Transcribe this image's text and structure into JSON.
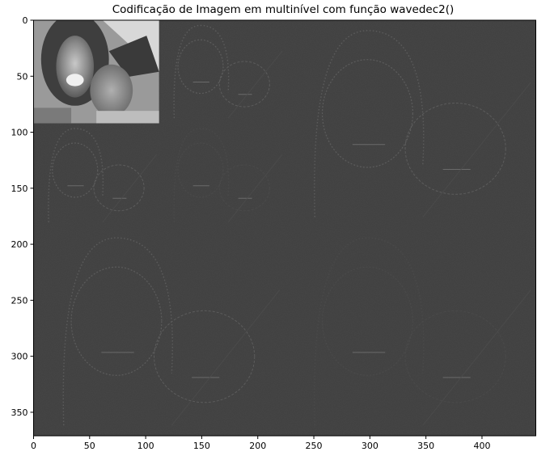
{
  "chart_data": {
    "type": "heatmap",
    "title": "Codificação de Imagem em multinível com função wavedec2()",
    "xlabel": "",
    "ylabel": "",
    "xlim": [
      0,
      448
    ],
    "ylim": [
      371,
      0
    ],
    "xticks": [
      0,
      50,
      100,
      150,
      200,
      250,
      300,
      350,
      400
    ],
    "yticks": [
      0,
      50,
      100,
      150,
      200,
      250,
      300,
      350
    ],
    "colormap": "gray",
    "background_color": "#404040",
    "approximation_region": [
      0,
      112,
      0,
      92
    ],
    "subbands": [
      {
        "level": 3,
        "type": "approximation",
        "x": [
          0,
          112
        ],
        "y": [
          0,
          92
        ]
      },
      {
        "level": 3,
        "type": "horizontal",
        "x": [
          112,
          224
        ],
        "y": [
          0,
          92
        ]
      },
      {
        "level": 3,
        "type": "vertical",
        "x": [
          0,
          112
        ],
        "y": [
          92,
          185
        ]
      },
      {
        "level": 3,
        "type": "diagonal",
        "x": [
          112,
          224
        ],
        "y": [
          92,
          185
        ]
      },
      {
        "level": 2,
        "type": "horizontal",
        "x": [
          224,
          448
        ],
        "y": [
          0,
          185
        ]
      },
      {
        "level": 2,
        "type": "vertical",
        "x": [
          0,
          224
        ],
        "y": [
          185,
          371
        ]
      },
      {
        "level": 2,
        "type": "diagonal",
        "x": [
          224,
          448
        ],
        "y": [
          185,
          371
        ]
      }
    ],
    "grid": false,
    "legend": "none"
  }
}
